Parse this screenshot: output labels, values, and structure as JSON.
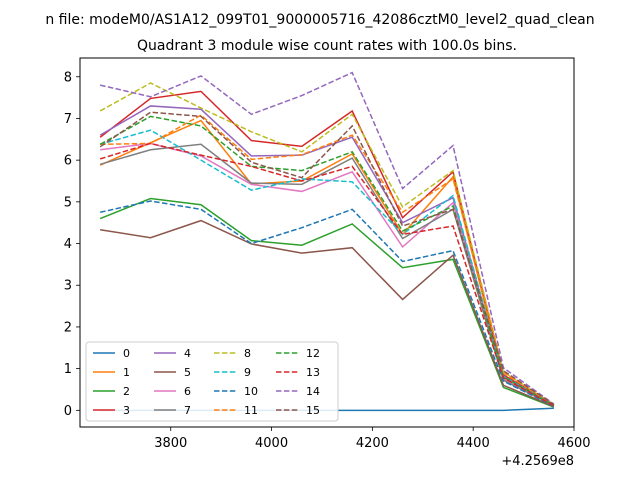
{
  "chart_data": {
    "type": "line",
    "suptitle": "n file: modeM0/AS1A12_099T01_9000005716_42086cztM0_level2_quad_clean",
    "title": "Quadrant 3 module wise count rates with 100.0s bins.",
    "x_offset_label": "+4.2569e8",
    "x": [
      3660,
      3760,
      3860,
      3960,
      4060,
      4160,
      4260,
      4360,
      4460,
      4560
    ],
    "xlim": [
      3620,
      4600
    ],
    "ylim": [
      -0.4,
      8.45
    ],
    "xticks": [
      3800,
      4000,
      4200,
      4400,
      4600
    ],
    "yticks": [
      0,
      1,
      2,
      3,
      4,
      5,
      6,
      7,
      8
    ],
    "grid": false,
    "legend_position": "lower-left",
    "legend_columns": 4,
    "series": [
      {
        "name": "0",
        "color": "#1f77b4",
        "dash": "solid",
        "values": [
          0,
          0,
          0,
          0,
          0,
          0,
          0,
          0,
          0,
          0.05
        ]
      },
      {
        "name": "1",
        "color": "#ff7f0e",
        "dash": "solid",
        "values": [
          5.88,
          6.42,
          6.95,
          5.43,
          5.5,
          6.15,
          4.22,
          5.6,
          0.78,
          0.12
        ]
      },
      {
        "name": "2",
        "color": "#2ca02c",
        "dash": "solid",
        "values": [
          4.6,
          5.08,
          4.93,
          4.07,
          3.96,
          4.47,
          3.42,
          3.62,
          0.55,
          0.08
        ]
      },
      {
        "name": "3",
        "color": "#d62728",
        "dash": "solid",
        "values": [
          6.55,
          7.48,
          7.65,
          6.47,
          6.33,
          7.18,
          4.62,
          5.72,
          0.85,
          0.13
        ]
      },
      {
        "name": "4",
        "color": "#9467bd",
        "dash": "solid",
        "values": [
          6.6,
          7.3,
          7.22,
          6.1,
          6.12,
          6.55,
          4.5,
          5.1,
          0.8,
          0.12
        ]
      },
      {
        "name": "5",
        "color": "#8c564b",
        "dash": "solid",
        "values": [
          4.33,
          4.14,
          4.55,
          3.99,
          3.77,
          3.9,
          2.66,
          3.72,
          0.6,
          0.09
        ]
      },
      {
        "name": "6",
        "color": "#e377c2",
        "dash": "solid",
        "values": [
          6.25,
          6.4,
          6.1,
          5.42,
          5.25,
          5.72,
          3.92,
          4.98,
          0.75,
          0.11
        ]
      },
      {
        "name": "7",
        "color": "#7f7f7f",
        "dash": "solid",
        "values": [
          5.9,
          6.25,
          6.38,
          5.45,
          5.42,
          6.05,
          4.12,
          4.82,
          0.72,
          0.11
        ]
      },
      {
        "name": "8",
        "color": "#bcbd22",
        "dash": "dashed",
        "values": [
          7.18,
          7.85,
          7.25,
          6.68,
          6.2,
          7.1,
          4.88,
          5.75,
          0.92,
          0.14
        ]
      },
      {
        "name": "9",
        "color": "#17becf",
        "dash": "dashed",
        "values": [
          6.38,
          6.72,
          6.0,
          5.28,
          5.55,
          5.48,
          4.22,
          5.15,
          0.82,
          0.12
        ]
      },
      {
        "name": "10",
        "color": "#1f77b4",
        "dash": "dashed",
        "values": [
          4.75,
          5.02,
          4.82,
          4.0,
          4.38,
          4.82,
          3.57,
          3.83,
          0.7,
          0.1
        ]
      },
      {
        "name": "11",
        "color": "#ff7f0e",
        "dash": "dashed",
        "values": [
          6.38,
          6.4,
          7.08,
          6.02,
          6.13,
          6.6,
          4.75,
          5.55,
          0.9,
          0.13
        ]
      },
      {
        "name": "12",
        "color": "#2ca02c",
        "dash": "dashed",
        "values": [
          6.38,
          7.05,
          6.82,
          5.85,
          5.75,
          6.2,
          4.3,
          4.9,
          0.8,
          0.12
        ]
      },
      {
        "name": "13",
        "color": "#d62728",
        "dash": "dashed",
        "values": [
          6.03,
          6.4,
          6.12,
          5.85,
          5.5,
          5.85,
          4.22,
          4.42,
          0.78,
          0.11
        ]
      },
      {
        "name": "14",
        "color": "#9467bd",
        "dash": "dashed",
        "values": [
          7.8,
          7.52,
          8.02,
          7.1,
          7.55,
          8.1,
          5.32,
          6.35,
          1.02,
          0.15
        ]
      },
      {
        "name": "15",
        "color": "#8c564b",
        "dash": "dashed",
        "values": [
          6.32,
          7.15,
          7.05,
          5.95,
          5.58,
          6.82,
          4.42,
          4.82,
          0.95,
          0.14
        ]
      }
    ]
  }
}
